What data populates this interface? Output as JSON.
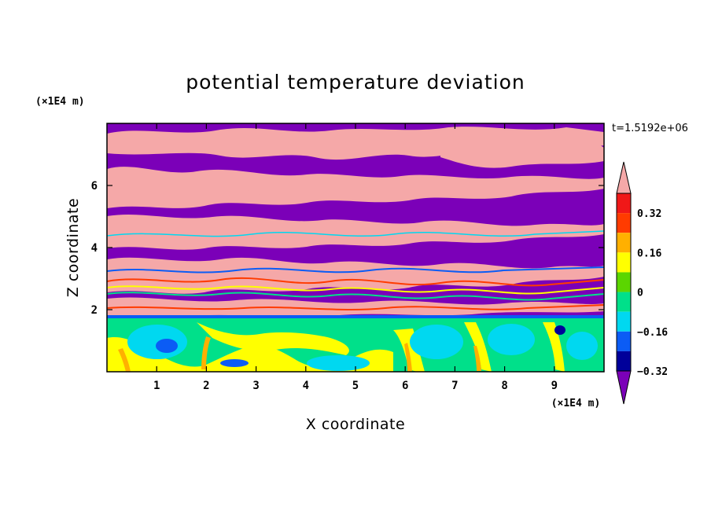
{
  "chart_data": {
    "type": "heatmap",
    "title": "potential temperature deviation",
    "xlabel": "X coordinate",
    "ylabel": "Z coordinate",
    "x_unit": "(×1E4 m)",
    "y_unit": "(×1E4 m)",
    "time_label": "t=1.5192e+06",
    "xlim": [
      0,
      10
    ],
    "ylim": [
      0,
      8
    ],
    "x_ticks": [
      "1",
      "2",
      "3",
      "4",
      "5",
      "6",
      "7",
      "8",
      "9"
    ],
    "y_ticks": [
      "2",
      "4",
      "6"
    ],
    "colorbar": {
      "levels": [
        -0.4,
        -0.32,
        -0.24,
        -0.16,
        -0.08,
        0,
        0.08,
        0.16,
        0.24,
        0.32,
        0.4
      ],
      "tick_labels": [
        "0.32",
        "0.16",
        "0",
        "−0.16",
        "−0.32"
      ],
      "colors": [
        "#7b00b8",
        "#00009a",
        "#0b5cf5",
        "#00d8f0",
        "#00e08a",
        "#5bd600",
        "#ffff00",
        "#ffb000",
        "#ff3b00",
        "#f01818",
        "#f5a8a8"
      ],
      "extend": "both"
    },
    "grid": false,
    "legend": "right"
  }
}
